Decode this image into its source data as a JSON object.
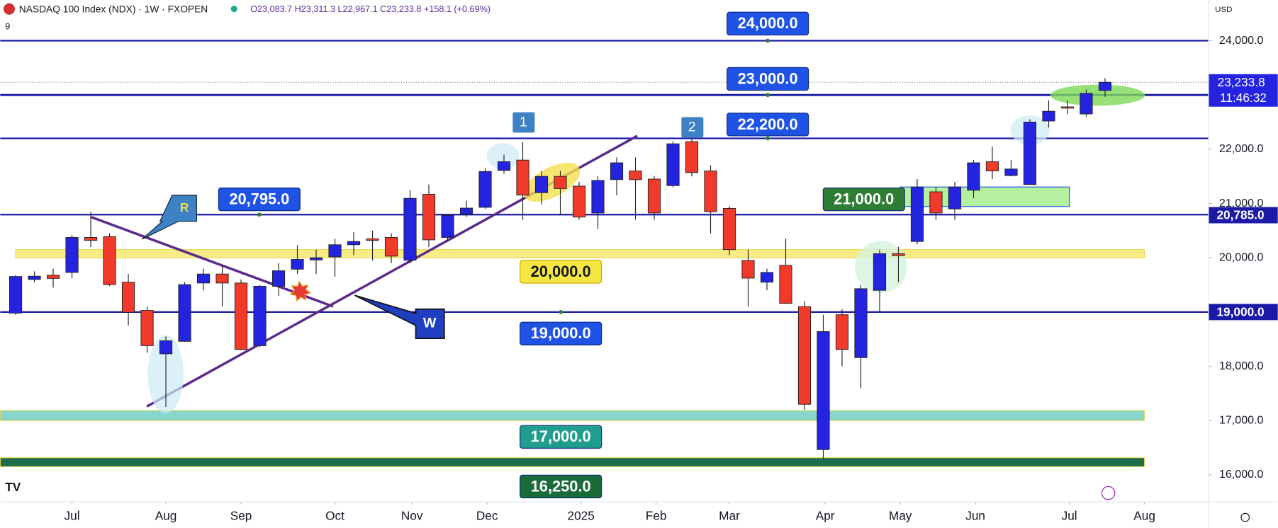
{
  "chart_data": {
    "type": "candlestick",
    "title": "NASDAQ 100 Index (NDX) · 1W · FXOPEN",
    "stats": "O23,083.7 H23,311.3 L22,967.1 C23,233.8 +158.1 (+0.69%)",
    "indicator_count": "9",
    "currency": "USD",
    "up_color": "#2424e0",
    "down_color": "#f23a2a",
    "x": [
      0,
      1,
      2,
      3,
      4,
      5,
      6,
      7,
      8,
      9,
      10,
      11,
      12,
      13,
      14,
      15,
      16,
      17,
      18,
      19,
      20,
      21,
      22,
      23,
      24,
      25,
      26,
      27,
      28,
      29,
      30,
      31,
      32,
      33,
      34,
      35,
      36,
      37,
      38,
      39,
      40,
      41,
      42,
      43,
      44,
      45,
      46,
      47,
      48,
      49,
      50,
      51,
      52,
      53,
      54,
      55,
      56,
      57,
      58
    ],
    "open": [
      18980,
      19600,
      19680,
      19730,
      20375,
      20390,
      19550,
      19030,
      18230,
      18460,
      19535,
      19700,
      19535,
      18380,
      19475,
      19790,
      19960,
      20015,
      20240,
      20350,
      20375,
      19955,
      21170,
      20375,
      20810,
      20930,
      21610,
      21800,
      21200,
      21500,
      21320,
      20825,
      21440,
      21600,
      21450,
      21330,
      22140,
      21600,
      20910,
      19950,
      19550,
      19860,
      19100,
      16465,
      18950,
      18160,
      19400,
      20075,
      20300,
      21215,
      20900,
      21245,
      21770,
      21515,
      21350,
      22520,
      22780,
      22650,
      23083.7
    ],
    "high": [
      19680,
      19750,
      19800,
      20420,
      20850,
      20450,
      19700,
      19100,
      18550,
      19550,
      19800,
      19850,
      19600,
      19500,
      19900,
      20230,
      20150,
      20350,
      20470,
      20500,
      20450,
      21250,
      21350,
      20800,
      21050,
      21650,
      21900,
      22130,
      21600,
      21600,
      21400,
      21500,
      21850,
      21850,
      21500,
      22150,
      22200,
      21700,
      20950,
      20150,
      19800,
      20350,
      19200,
      18950,
      19050,
      19500,
      20150,
      20200,
      21450,
      21300,
      21400,
      21800,
      22050,
      21800,
      22550,
      22900,
      22900,
      23100,
      23311.3
    ],
    "low": [
      18950,
      19550,
      19450,
      19620,
      20200,
      19480,
      18750,
      18250,
      17250,
      18450,
      19400,
      19100,
      18300,
      18350,
      19300,
      19700,
      19700,
      19650,
      20050,
      19950,
      19900,
      19900,
      20200,
      20300,
      20750,
      20900,
      21550,
      20700,
      20980,
      20800,
      20700,
      20530,
      21150,
      20700,
      20700,
      21300,
      21500,
      20450,
      20050,
      19100,
      19400,
      19150,
      17200,
      16300,
      18000,
      17600,
      19000,
      19550,
      20250,
      20700,
      20700,
      21100,
      21450,
      21500,
      21350,
      22400,
      22650,
      22600,
      22967.1
    ],
    "close": [
      19655,
      19660,
      19620,
      20375,
      20320,
      19505,
      18995,
      18380,
      18470,
      19505,
      19700,
      19535,
      18310,
      19475,
      19760,
      19970,
      20000,
      20240,
      20300,
      20320,
      20030,
      21095,
      20330,
      20780,
      20915,
      21590,
      21770,
      21155,
      21500,
      21275,
      20750,
      21425,
      21750,
      21440,
      20825,
      22100,
      21570,
      20850,
      20150,
      19625,
      19730,
      19160,
      17300,
      18640,
      18310,
      19430,
      20075,
      20040,
      21305,
      20825,
      21305,
      21750,
      21600,
      21635,
      22500,
      22700,
      22760,
      23030,
      23233.8
    ],
    "xlim": [
      -0.82,
      63.51
    ],
    "xticks": [
      {
        "value": 3,
        "label": "Jul"
      },
      {
        "value": 8,
        "label": "Aug"
      },
      {
        "value": 12,
        "label": "Sep"
      },
      {
        "value": 17,
        "label": "Oct"
      },
      {
        "value": 21.1,
        "label": "Nov"
      },
      {
        "value": 25.1,
        "label": "Dec"
      },
      {
        "value": 30.1,
        "label": "2025"
      },
      {
        "value": 34.1,
        "label": "Feb"
      },
      {
        "value": 38,
        "label": "Mar"
      },
      {
        "value": 43.1,
        "label": "Apr"
      },
      {
        "value": 47.1,
        "label": "May"
      },
      {
        "value": 51.1,
        "label": "Jun"
      },
      {
        "value": 56.1,
        "label": "Jul"
      },
      {
        "value": 60.1,
        "label": "Aug"
      }
    ],
    "ylim": [
      15500,
      24750
    ],
    "yticks": [
      {
        "value": 16000,
        "label": "16,000.0"
      },
      {
        "value": 17000,
        "label": "17,000.0"
      },
      {
        "value": 18000,
        "label": "18,000.0"
      },
      {
        "value": 20000,
        "label": "20,000.0"
      },
      {
        "value": 21000,
        "label": "21,000.0"
      },
      {
        "value": 22000,
        "label": "22,000.0"
      },
      {
        "value": 24000,
        "label": "24,000.0"
      }
    ],
    "last_price": {
      "value": 23233.8,
      "label": "23,233.8",
      "countdown": "11:46:32"
    },
    "price_markers": [
      {
        "value": 20785,
        "label": "20,785.0"
      },
      {
        "value": 19000,
        "label": "19,000.0"
      }
    ],
    "levels": [
      {
        "value": 24000,
        "label": "24,000.0",
        "color": "#1e53e5",
        "line": true
      },
      {
        "value": 23000,
        "label": "23,000.0",
        "color": "#1e53e5",
        "line": true
      },
      {
        "value": 22200,
        "label": "22,200.0",
        "color": "#1e53e5",
        "line": true
      },
      {
        "value": 20795,
        "label": "20,795.0",
        "color": "#1e53e5",
        "line": true
      },
      {
        "value": 21000,
        "label": "21,000.0",
        "color": "#2e7d32",
        "line": false
      },
      {
        "value": 20000,
        "label": "20,000.0",
        "color": "#f5e642",
        "line": false
      },
      {
        "value": 19000,
        "label": "19,000.0",
        "color": "#1e53e5",
        "line": true
      },
      {
        "value": 17000,
        "label": "17,000.0",
        "color": "#1f9e8f",
        "line": false
      },
      {
        "value": 16250,
        "label": "16,250.0",
        "color": "#1b6b3a",
        "line": false
      }
    ],
    "bands": [
      {
        "from": 20000,
        "to": 20150,
        "x0": 0,
        "x1": 60.1,
        "color": "#f7ec86"
      },
      {
        "from": 20944,
        "to": 21304,
        "x0": 47.1,
        "x1": 56.1,
        "color": "#b4f0a0"
      },
      {
        "from": 17000,
        "to": 17185,
        "x0": -0.82,
        "x1": 60.1,
        "color": "#86d6cc"
      },
      {
        "from": 16150,
        "to": 16315,
        "x0": -0.82,
        "x1": 60.1,
        "color": "#1e6e4e"
      }
    ],
    "trendlines": [
      {
        "x": [
          6.98,
          33.1
        ],
        "y": [
          17259,
          22247
        ],
        "color": "#5b2a8c"
      },
      {
        "x": [
          4.03,
          16.9
        ],
        "y": [
          20749,
          19102
        ],
        "color": "#5b2a8c"
      }
    ],
    "annotations": [
      "1",
      "2",
      "R",
      "W"
    ]
  }
}
